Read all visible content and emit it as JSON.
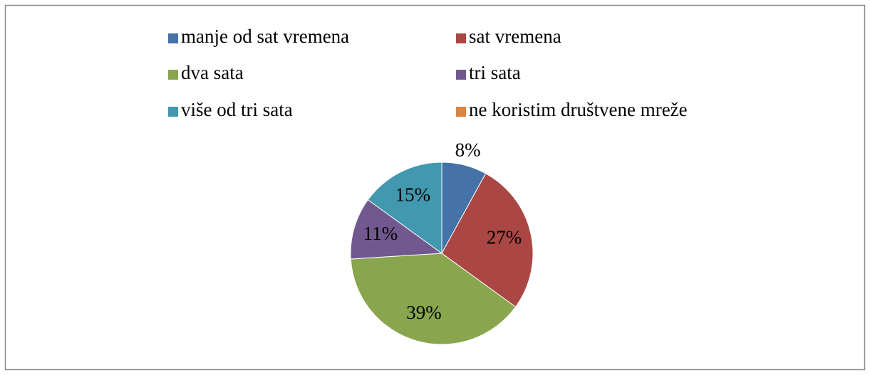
{
  "chart_data": {
    "type": "pie",
    "categories": [
      "manje od sat vremena",
      "sat vremena",
      "dva sata",
      "tri sata",
      "više od tri sata",
      "ne koristim društvene mreže"
    ],
    "values": [
      8,
      27,
      39,
      11,
      15,
      0
    ],
    "value_labels": [
      "8%",
      "27%",
      "39%",
      "11%",
      "15%",
      null
    ],
    "colors": [
      "#4572a7",
      "#aa4643",
      "#89a54e",
      "#71588f",
      "#4198af",
      "#db843d"
    ],
    "legend": "top"
  }
}
